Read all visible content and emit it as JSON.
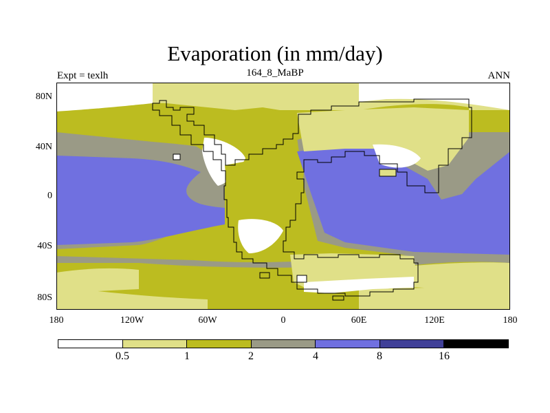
{
  "title": "Evaporation (in mm/day)",
  "subtitle_left": "Expt = texlh",
  "subtitle_center": "164_8_MaBP",
  "subtitle_right": "ANN",
  "lat_labels": [
    "80N",
    "40N",
    "0",
    "40S",
    "80S"
  ],
  "lon_labels": [
    "180",
    "120W",
    "60W",
    "0",
    "60E",
    "120E",
    "180"
  ],
  "colors": {
    "lt05": "#ffffff",
    "b05_1": "#e0e088",
    "b1_2": "#bcbc20",
    "b2_4": "#9a9a86",
    "b4_8": "#7070e0",
    "b8_16": "#404098",
    "gt16": "#000000"
  },
  "colorbar": {
    "labels": [
      "0.5",
      "1",
      "2",
      "4",
      "8",
      "16"
    ],
    "segment_colors": [
      "#ffffff",
      "#e0e088",
      "#bcbc20",
      "#9a9a86",
      "#7070e0",
      "#404098",
      "#000000"
    ]
  }
}
